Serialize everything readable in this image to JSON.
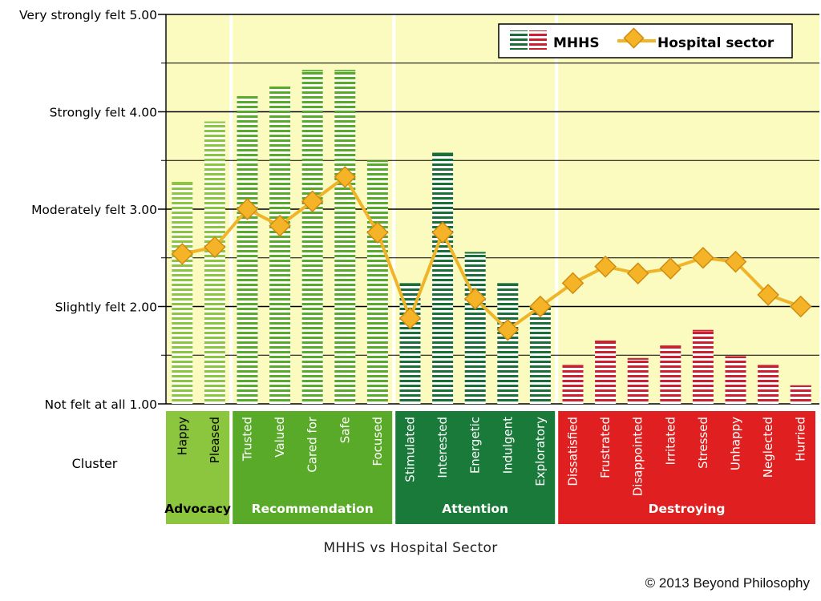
{
  "chart_data": {
    "type": "bar",
    "title": "MHHS vs Hospital Sector",
    "xlabel": "Cluster",
    "ylim": [
      1,
      5
    ],
    "yticks": [
      {
        "value": 5,
        "label": "Very strongly felt 5.00"
      },
      {
        "value": 4,
        "label": "Strongly felt 4.00"
      },
      {
        "value": 3,
        "label": "Moderately felt 3.00"
      },
      {
        "value": 2,
        "label": "Slightly felt 2.00"
      },
      {
        "value": 1,
        "label": "Not felt at all 1.00"
      }
    ],
    "categories": [
      "Happy",
      "Pleased",
      "Trusted",
      "Valued",
      "Cared for",
      "Safe",
      "Focused",
      "Stimulated",
      "Interested",
      "Energetic",
      "Indulgent",
      "Exploratory",
      "Dissatisfied",
      "Frustrated",
      "Disappointed",
      "Irritated",
      "Stressed",
      "Unhappy",
      "Neglected",
      "Hurried"
    ],
    "clusters": [
      {
        "name": "Advocacy",
        "start": 0,
        "count": 2,
        "color": "#8cc63f",
        "bar_color": "#8cc63f"
      },
      {
        "name": "Recommendation",
        "start": 2,
        "count": 5,
        "color": "#5aaa2a",
        "bar_color": "#5aaa2a"
      },
      {
        "name": "Attention",
        "start": 7,
        "count": 5,
        "color": "#1a7a3a",
        "bar_color": "#1a6e38"
      },
      {
        "name": "Destroying",
        "start": 12,
        "count": 8,
        "color": "#e02020",
        "bar_color": "#cc2030"
      }
    ],
    "series": [
      {
        "name": "MHHS",
        "type": "bar",
        "values": [
          3.28,
          3.9,
          4.16,
          4.26,
          4.43,
          4.43,
          3.5,
          2.24,
          3.58,
          2.56,
          2.24,
          2.0,
          1.4,
          1.65,
          1.47,
          1.6,
          1.76,
          1.49,
          1.4,
          1.19
        ]
      },
      {
        "name": "Hospital sector",
        "type": "line",
        "values": [
          2.54,
          2.61,
          3.0,
          2.83,
          3.08,
          3.33,
          2.76,
          1.88,
          2.76,
          2.08,
          1.76,
          2.0,
          2.24,
          2.41,
          2.34,
          2.39,
          2.5,
          2.46,
          2.12,
          2.0
        ]
      }
    ],
    "legend_position": "top-right",
    "grid": true
  },
  "copyright": "© 2013 Beyond Philosophy",
  "colors": {
    "plot_bg": "#fbfbc0",
    "line": "#f0b428",
    "marker_fill": "#f5b428",
    "marker_stroke": "#d08c10",
    "legend_red": "#cc2030",
    "legend_green": "#1a6e38"
  }
}
